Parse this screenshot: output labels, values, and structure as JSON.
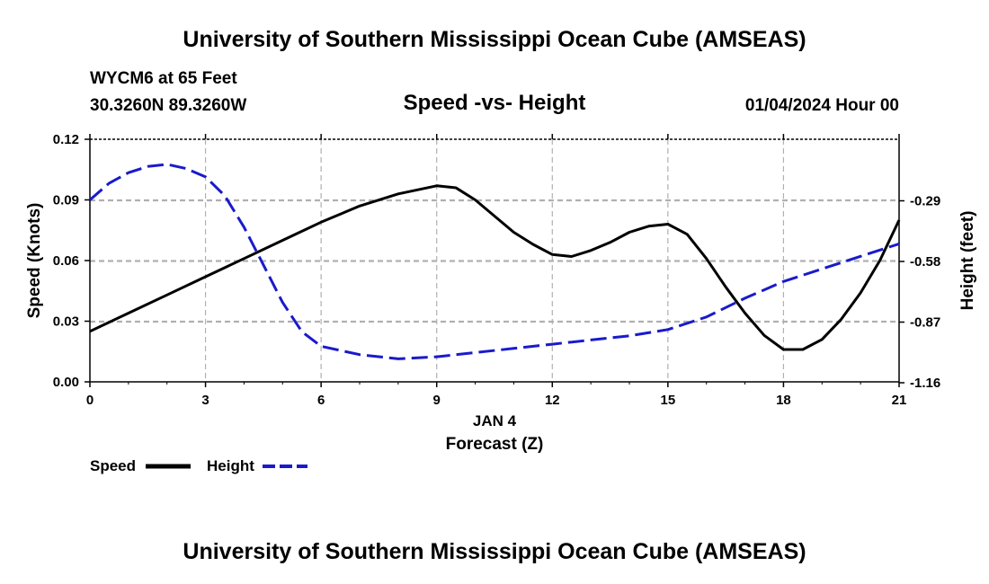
{
  "header": {
    "title": "University of Southern Mississippi Ocean Cube (AMSEAS)",
    "station": "WYCM6 at 65 Feet",
    "coords": "30.3260N  89.3260W",
    "chart_title": "Speed -vs- Height",
    "date": "01/04/2024 Hour 00"
  },
  "footer": {
    "title": "University of Southern Mississippi Ocean Cube (AMSEAS)"
  },
  "legend": {
    "speed_label": "Speed",
    "height_label": "Height"
  },
  "colors": {
    "speed": "#000000",
    "height": "#1a1acc",
    "grid": "#b0b0b0"
  },
  "chart_data": {
    "type": "line",
    "title": "Speed -vs- Height",
    "xlabel": "Forecast (Z)",
    "xdate": "JAN 4",
    "ylabel": "Speed (Knots)",
    "y2label": "Height (feet)",
    "xlim": [
      0,
      21
    ],
    "ylim": [
      0,
      0.12
    ],
    "y2lim": [
      -1.16,
      0
    ],
    "xticks": [
      0,
      3,
      6,
      9,
      12,
      15,
      18,
      21
    ],
    "xtick_labels": [
      "0",
      "3",
      "6",
      "9",
      "12",
      "15",
      "18",
      "21"
    ],
    "yticks": [
      0,
      0.03,
      0.06,
      0.09,
      0.12
    ],
    "ytick_labels": [
      "0.00",
      "0.03",
      "0.06",
      "0.09",
      "0.12"
    ],
    "y2ticks": [
      -1.16,
      -0.87,
      -0.58,
      -0.29
    ],
    "y2tick_labels": [
      "-1.16",
      "-0.87",
      "-0.58",
      "-0.29"
    ],
    "grid": true,
    "legend": "bottom-left",
    "series": [
      {
        "name": "Speed",
        "axis": "left",
        "style": "solid",
        "x": [
          0,
          1,
          2,
          3,
          4,
          5,
          6,
          7,
          8,
          9,
          9.5,
          10,
          10.5,
          11,
          11.5,
          12,
          12.5,
          13,
          13.5,
          14,
          14.5,
          15,
          15.5,
          16,
          16.5,
          17,
          17.5,
          18,
          18.5,
          19,
          19.5,
          20,
          20.5,
          21
        ],
        "values": [
          0.025,
          0.034,
          0.043,
          0.052,
          0.061,
          0.07,
          0.079,
          0.087,
          0.093,
          0.097,
          0.096,
          0.09,
          0.082,
          0.074,
          0.068,
          0.063,
          0.062,
          0.065,
          0.069,
          0.074,
          0.077,
          0.078,
          0.073,
          0.061,
          0.047,
          0.034,
          0.023,
          0.016,
          0.016,
          0.021,
          0.031,
          0.044,
          0.06,
          0.08
        ]
      },
      {
        "name": "Height",
        "axis": "right",
        "style": "dashed",
        "x": [
          0,
          0.5,
          1,
          1.5,
          2,
          2.5,
          3,
          3.5,
          4,
          4.5,
          5,
          5.5,
          6,
          7,
          8,
          9,
          10,
          11,
          12,
          13,
          14,
          15,
          16,
          17,
          18,
          19,
          20,
          21
        ],
        "values": [
          -0.29,
          -0.21,
          -0.16,
          -0.13,
          -0.12,
          -0.14,
          -0.18,
          -0.27,
          -0.42,
          -0.6,
          -0.78,
          -0.92,
          -0.99,
          -1.03,
          -1.05,
          -1.04,
          -1.02,
          -1.0,
          -0.98,
          -0.96,
          -0.94,
          -0.91,
          -0.85,
          -0.76,
          -0.68,
          -0.62,
          -0.56,
          -0.5
        ]
      }
    ]
  }
}
